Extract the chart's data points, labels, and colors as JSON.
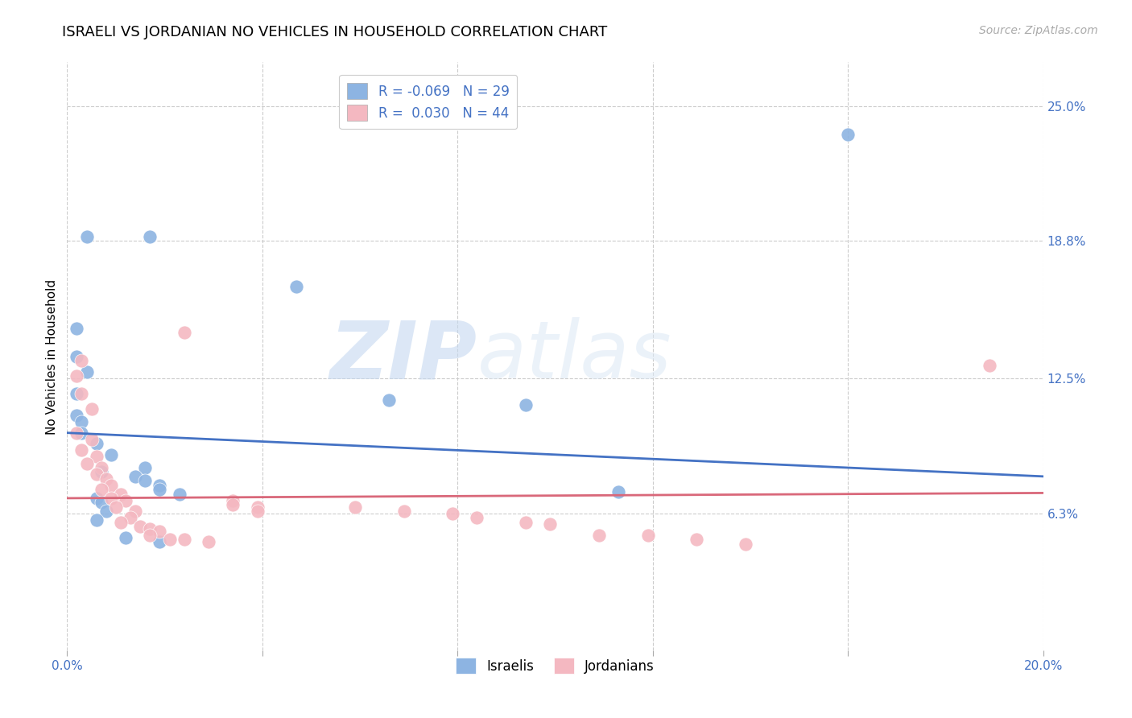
{
  "title": "ISRAELI VS JORDANIAN NO VEHICLES IN HOUSEHOLD CORRELATION CHART",
  "source": "Source: ZipAtlas.com",
  "ylabel": "No Vehicles in Household",
  "xlabel": "",
  "watermark_zip": "ZIP",
  "watermark_atlas": "atlas",
  "xlim": [
    0.0,
    0.2
  ],
  "ylim": [
    0.0,
    0.27
  ],
  "yticks": [
    0.063,
    0.125,
    0.188,
    0.25
  ],
  "ytick_labels": [
    "6.3%",
    "12.5%",
    "18.8%",
    "25.0%"
  ],
  "xticks": [
    0.0,
    0.04,
    0.08,
    0.12,
    0.16,
    0.2
  ],
  "xtick_labels": [
    "0.0%",
    "",
    "",
    "",
    "",
    "20.0%"
  ],
  "israeli_color": "#8db4e2",
  "jordanian_color": "#f4b8c1",
  "israeli_line_color": "#4472c4",
  "jordanian_line_color": "#d9687a",
  "israeli_R": -0.069,
  "israeli_N": 29,
  "jordanian_R": 0.03,
  "jordanian_N": 44,
  "israeli_points": [
    [
      0.004,
      0.19
    ],
    [
      0.017,
      0.19
    ],
    [
      0.002,
      0.148
    ],
    [
      0.002,
      0.135
    ],
    [
      0.004,
      0.128
    ],
    [
      0.002,
      0.118
    ],
    [
      0.002,
      0.108
    ],
    [
      0.003,
      0.105
    ],
    [
      0.003,
      0.1
    ],
    [
      0.006,
      0.095
    ],
    [
      0.009,
      0.09
    ],
    [
      0.016,
      0.084
    ],
    [
      0.007,
      0.082
    ],
    [
      0.014,
      0.08
    ],
    [
      0.016,
      0.078
    ],
    [
      0.019,
      0.076
    ],
    [
      0.019,
      0.074
    ],
    [
      0.023,
      0.072
    ],
    [
      0.006,
      0.07
    ],
    [
      0.007,
      0.068
    ],
    [
      0.008,
      0.064
    ],
    [
      0.006,
      0.06
    ],
    [
      0.012,
      0.052
    ],
    [
      0.019,
      0.05
    ],
    [
      0.047,
      0.167
    ],
    [
      0.066,
      0.115
    ],
    [
      0.094,
      0.113
    ],
    [
      0.113,
      0.073
    ],
    [
      0.16,
      0.237
    ]
  ],
  "jordanian_points": [
    [
      0.003,
      0.133
    ],
    [
      0.002,
      0.126
    ],
    [
      0.003,
      0.118
    ],
    [
      0.005,
      0.111
    ],
    [
      0.002,
      0.1
    ],
    [
      0.005,
      0.097
    ],
    [
      0.003,
      0.092
    ],
    [
      0.006,
      0.089
    ],
    [
      0.004,
      0.086
    ],
    [
      0.007,
      0.084
    ],
    [
      0.006,
      0.081
    ],
    [
      0.008,
      0.079
    ],
    [
      0.009,
      0.076
    ],
    [
      0.007,
      0.074
    ],
    [
      0.011,
      0.072
    ],
    [
      0.009,
      0.07
    ],
    [
      0.012,
      0.069
    ],
    [
      0.01,
      0.066
    ],
    [
      0.014,
      0.064
    ],
    [
      0.013,
      0.061
    ],
    [
      0.011,
      0.059
    ],
    [
      0.015,
      0.057
    ],
    [
      0.017,
      0.056
    ],
    [
      0.019,
      0.055
    ],
    [
      0.017,
      0.053
    ],
    [
      0.021,
      0.051
    ],
    [
      0.024,
      0.051
    ],
    [
      0.029,
      0.05
    ],
    [
      0.034,
      0.069
    ],
    [
      0.034,
      0.067
    ],
    [
      0.039,
      0.066
    ],
    [
      0.039,
      0.064
    ],
    [
      0.059,
      0.066
    ],
    [
      0.069,
      0.064
    ],
    [
      0.079,
      0.063
    ],
    [
      0.084,
      0.061
    ],
    [
      0.094,
      0.059
    ],
    [
      0.099,
      0.058
    ],
    [
      0.109,
      0.053
    ],
    [
      0.119,
      0.053
    ],
    [
      0.129,
      0.051
    ],
    [
      0.139,
      0.049
    ],
    [
      0.189,
      0.131
    ],
    [
      0.024,
      0.146
    ]
  ],
  "israeli_intercept": 0.1,
  "israeli_slope": -0.1,
  "jordanian_intercept": 0.07,
  "jordanian_slope": 0.012,
  "background_color": "#ffffff",
  "grid_color": "#cccccc",
  "title_fontsize": 13,
  "label_fontsize": 11,
  "tick_fontsize": 11,
  "legend_fontsize": 12
}
